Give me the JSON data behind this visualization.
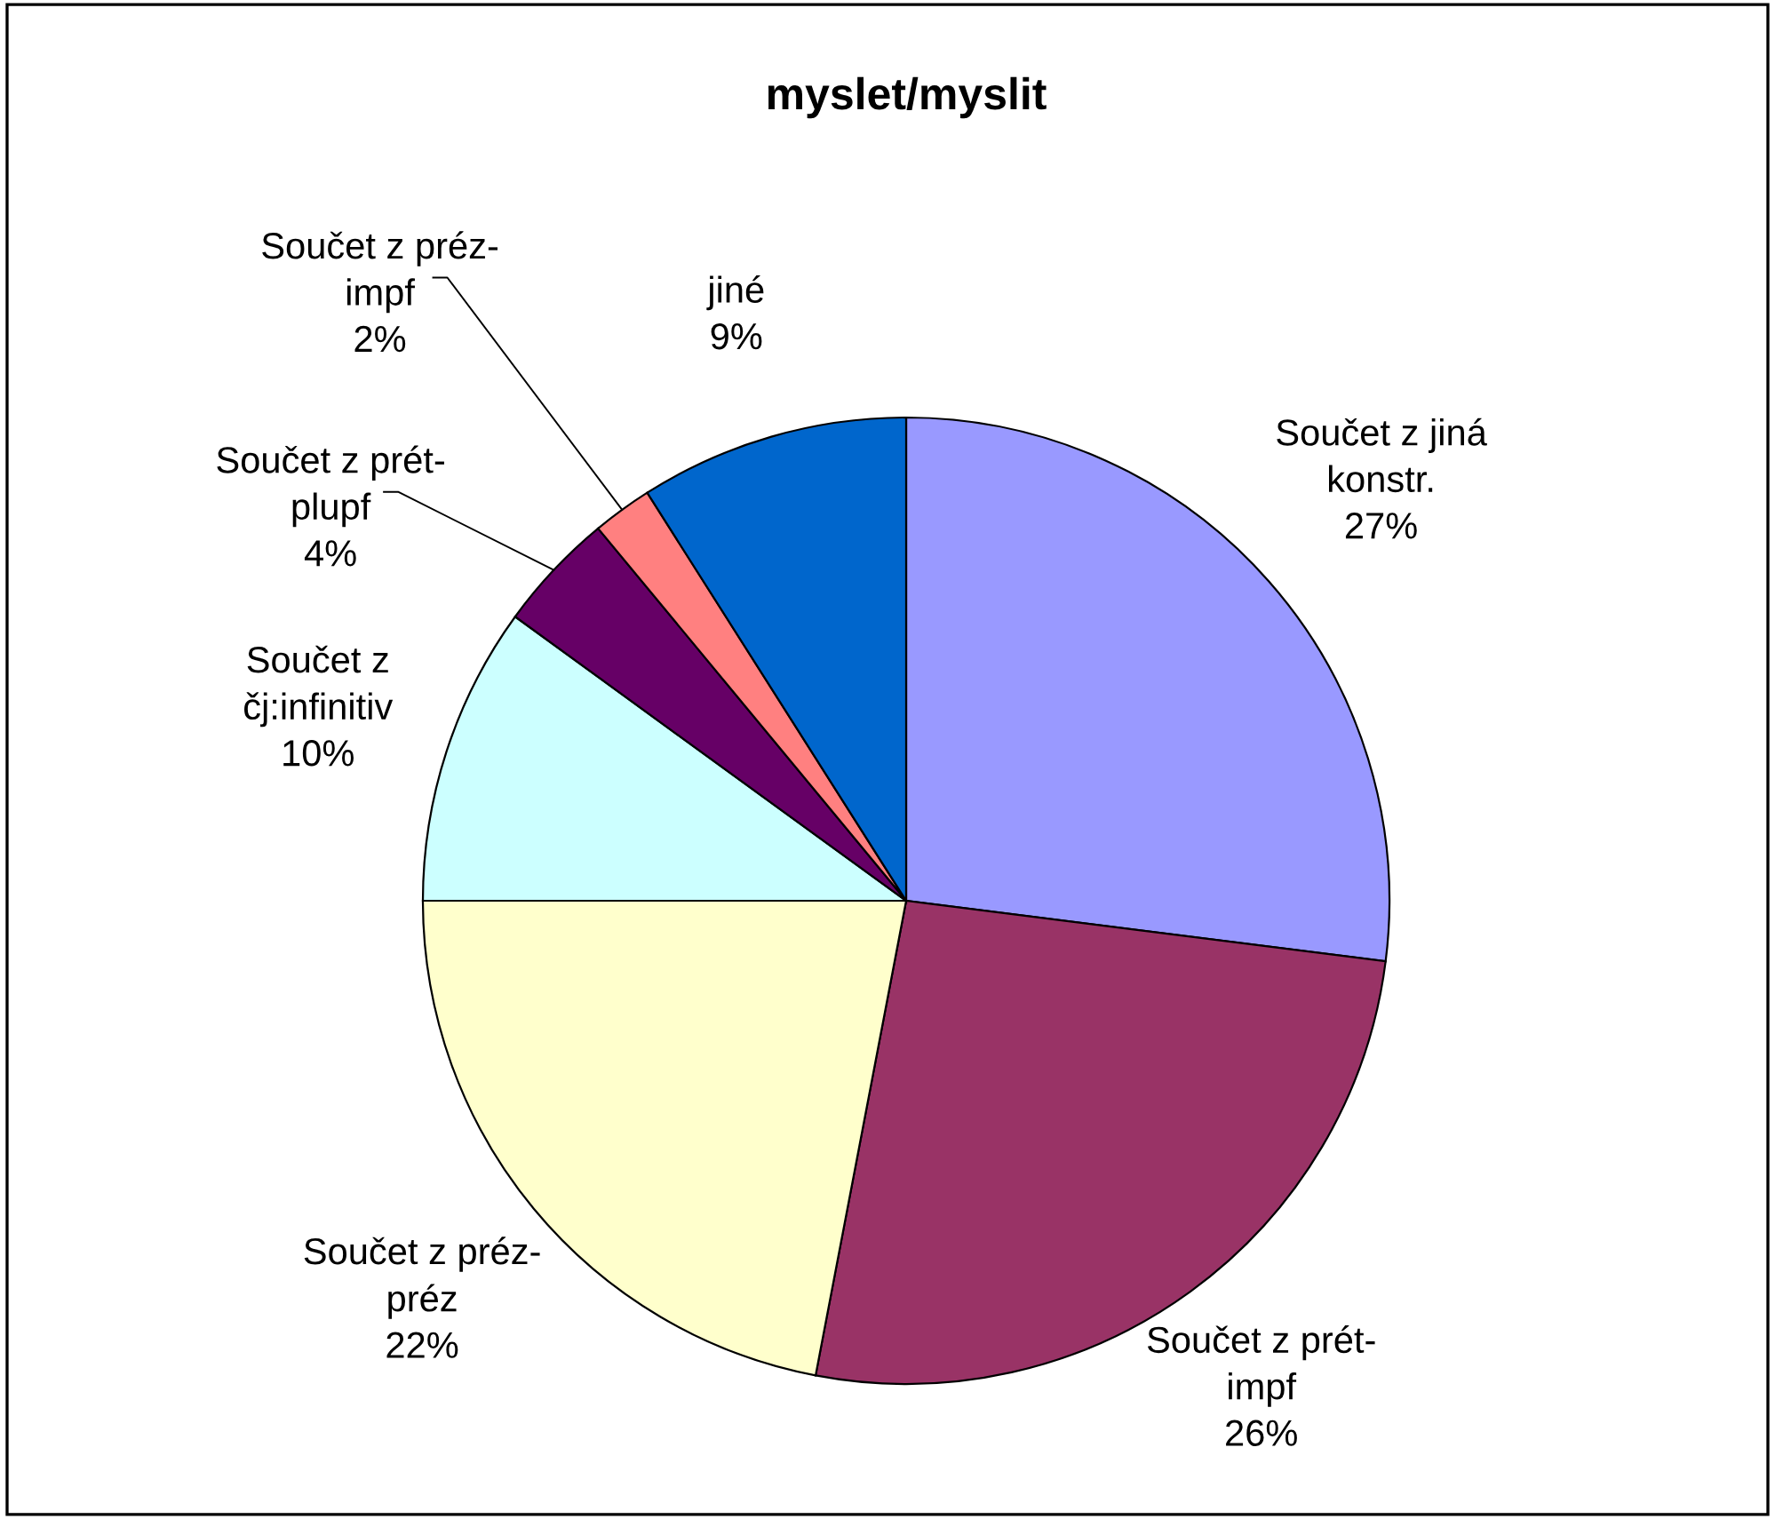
{
  "chart_data": {
    "type": "pie",
    "title": "myslet/myslit",
    "categories": [
      "Součet z jiná\nkonstr.",
      "Součet z prét-\nimpf",
      "Součet z préz-\npréz",
      "Součet z\nčj:infinitiv",
      "Součet z prét-\nplupf",
      "Součet z préz-\nimpf",
      "jiné"
    ],
    "values": [
      27,
      26,
      22,
      10,
      4,
      2,
      9
    ],
    "colors": [
      "#9999ff",
      "#993366",
      "#ffffcc",
      "#ccffff",
      "#660066",
      "#ff8080",
      "#0066cc"
    ],
    "value_labels": [
      "27%",
      "26%",
      "22%",
      "10%",
      "4%",
      "2%",
      "9%"
    ]
  }
}
